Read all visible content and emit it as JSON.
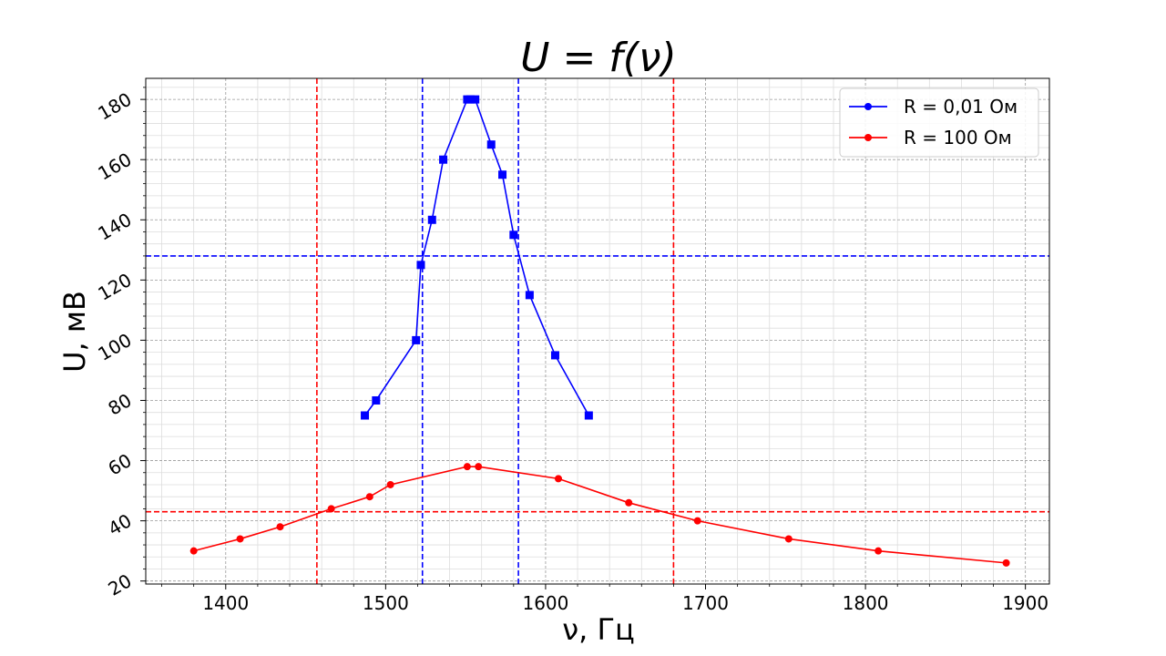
{
  "chart_data": {
    "type": "line",
    "title": "U = f(ν)",
    "xlabel": "ν, Гц",
    "ylabel": "U, мВ",
    "xlim": [
      1350,
      1915
    ],
    "ylim": [
      19,
      187
    ],
    "x_ticks": [
      1400,
      1500,
      1600,
      1700,
      1800,
      1900
    ],
    "y_ticks": [
      20,
      40,
      60,
      80,
      100,
      120,
      140,
      160,
      180
    ],
    "x_tick_labels": [
      "1400",
      "1500",
      "1600",
      "1700",
      "1800",
      "1900"
    ],
    "y_tick_labels": [
      "20",
      "40",
      "60",
      "80",
      "100",
      "120",
      "140",
      "160",
      "180"
    ],
    "grid": true,
    "legend_position": "top-right",
    "series": [
      {
        "name": "R = 0,01 Ом",
        "color": "#0000ff",
        "marker": "square",
        "x": [
          1487,
          1494,
          1519,
          1522,
          1529,
          1536,
          1551,
          1553,
          1556,
          1566,
          1573,
          1580,
          1590,
          1606,
          1627
        ],
        "y": [
          75,
          80,
          100,
          125,
          140,
          160,
          180,
          180,
          180,
          165,
          155,
          135,
          115,
          95,
          75
        ]
      },
      {
        "name": "R = 100 Ом",
        "color": "#ff0000",
        "marker": "circle",
        "x": [
          1380,
          1409,
          1434,
          1466,
          1490,
          1503,
          1551,
          1558,
          1608,
          1652,
          1695,
          1752,
          1808,
          1888
        ],
        "y": [
          30,
          34,
          38,
          44,
          48,
          52,
          58,
          58,
          54,
          46,
          40,
          34,
          30,
          26
        ]
      }
    ],
    "reference_lines": [
      {
        "orientation": "vertical",
        "value": 1457,
        "color": "#ff0000"
      },
      {
        "orientation": "vertical",
        "value": 1680,
        "color": "#ff0000"
      },
      {
        "orientation": "vertical",
        "value": 1523,
        "color": "#0000ff"
      },
      {
        "orientation": "vertical",
        "value": 1583,
        "color": "#0000ff"
      },
      {
        "orientation": "horizontal",
        "value": 128,
        "color": "#0000ff"
      },
      {
        "orientation": "horizontal",
        "value": 43,
        "color": "#ff0000"
      }
    ]
  }
}
